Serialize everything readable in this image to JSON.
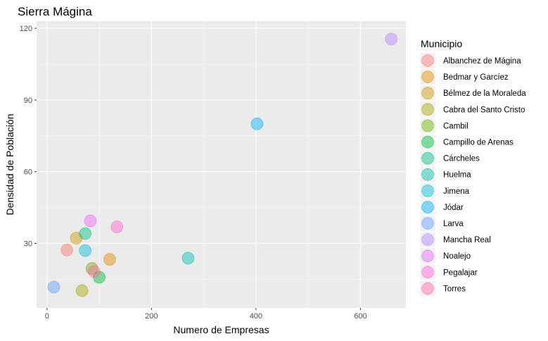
{
  "chart_data": {
    "type": "scatter",
    "title": "Sierra Mágina",
    "xlabel": "Numero de Empresas",
    "ylabel": "Densidad de Población",
    "xlim": [
      -20,
      687
    ],
    "ylim": [
      3,
      123
    ],
    "xticks": [
      0,
      200,
      400,
      600
    ],
    "yticks": [
      30,
      60,
      90,
      120
    ],
    "grid": true,
    "legend_title": "Municipio",
    "legend_position": "right",
    "series": [
      {
        "name": "Albanchez de Mágina",
        "color": "#F8766D",
        "x": 38,
        "y": 27.2
      },
      {
        "name": "Bedmar y Garcíez",
        "color": "#E58700",
        "x": 120,
        "y": 23.3
      },
      {
        "name": "Bélmez de la Moraleda",
        "color": "#C99800",
        "x": 56,
        "y": 32.2
      },
      {
        "name": "Cabra del Santo Cristo",
        "color": "#A3A500",
        "x": 67,
        "y": 10.2
      },
      {
        "name": "Cambil",
        "color": "#6BB100",
        "x": 86,
        "y": 19.5
      },
      {
        "name": "Campillo de Arenas",
        "color": "#00BA38",
        "x": 100,
        "y": 15.8
      },
      {
        "name": "Cárcheles",
        "color": "#00BF7D",
        "x": 73,
        "y": 34.1
      },
      {
        "name": "Huelma",
        "color": "#00C0AF",
        "x": 270,
        "y": 23.8
      },
      {
        "name": "Jimena",
        "color": "#00BCD8",
        "x": 73,
        "y": 27.0
      },
      {
        "name": "Jódar",
        "color": "#00B0F6",
        "x": 402,
        "y": 80.0
      },
      {
        "name": "Larva",
        "color": "#619CFF",
        "x": 13,
        "y": 11.7
      },
      {
        "name": "Mancha Real",
        "color": "#B983FF",
        "x": 659,
        "y": 115.5
      },
      {
        "name": "Noalejo",
        "color": "#E76BF3",
        "x": 83,
        "y": 39.4
      },
      {
        "name": "Pegalajar",
        "color": "#FD61D1",
        "x": 134,
        "y": 36.9
      },
      {
        "name": "Torres",
        "color": "#FF67A4",
        "x": 90,
        "y": 18.3
      }
    ]
  }
}
